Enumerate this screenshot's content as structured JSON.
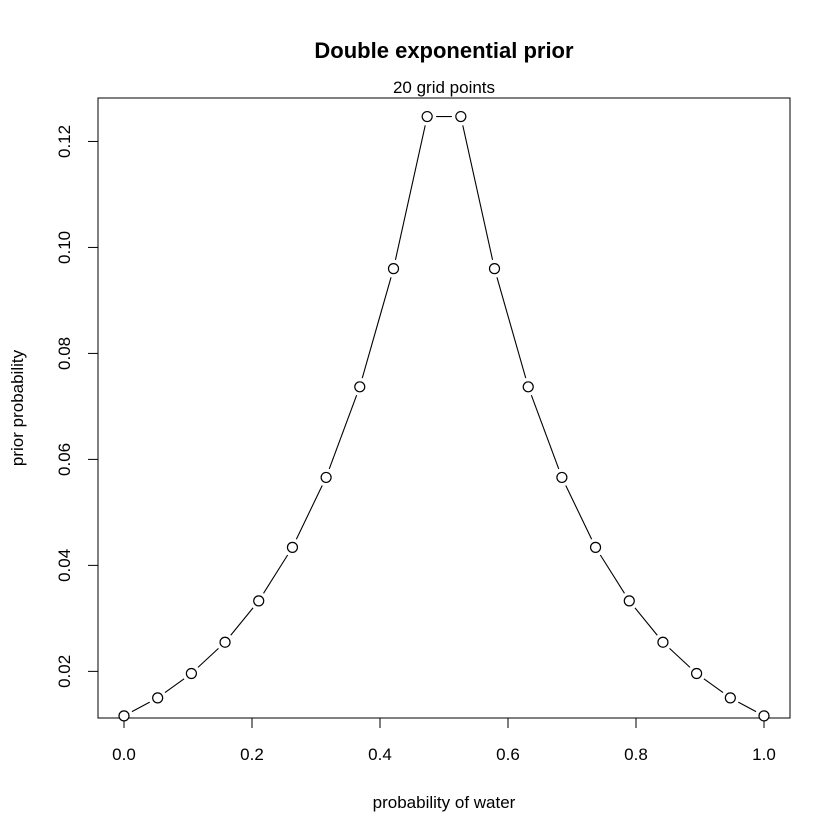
{
  "chart_data": {
    "type": "line",
    "title": "Double exponential prior",
    "subtitle": "20 grid points",
    "xlabel": "probability of water",
    "ylabel": "prior probability",
    "xlim": [
      0.0,
      1.0
    ],
    "ylim": [
      0.0112,
      0.1282
    ],
    "x_ticks": [
      "0.0",
      "0.2",
      "0.4",
      "0.6",
      "0.8",
      "1.0"
    ],
    "y_ticks": [
      "0.02",
      "0.04",
      "0.06",
      "0.08",
      "0.10",
      "0.12"
    ],
    "marker": "open-circle",
    "line_color": "#000000",
    "x": [
      0.0,
      0.0526,
      0.1053,
      0.1579,
      0.2105,
      0.2632,
      0.3158,
      0.3684,
      0.4211,
      0.4737,
      0.5263,
      0.5789,
      0.6316,
      0.6842,
      0.7368,
      0.7895,
      0.8421,
      0.8947,
      0.9474,
      1.0
    ],
    "y": [
      0.0116,
      0.015,
      0.0196,
      0.0255,
      0.0333,
      0.0434,
      0.0566,
      0.0737,
      0.096,
      0.1247,
      0.1247,
      0.096,
      0.0737,
      0.0566,
      0.0434,
      0.0333,
      0.0255,
      0.0196,
      0.015,
      0.0116
    ]
  }
}
